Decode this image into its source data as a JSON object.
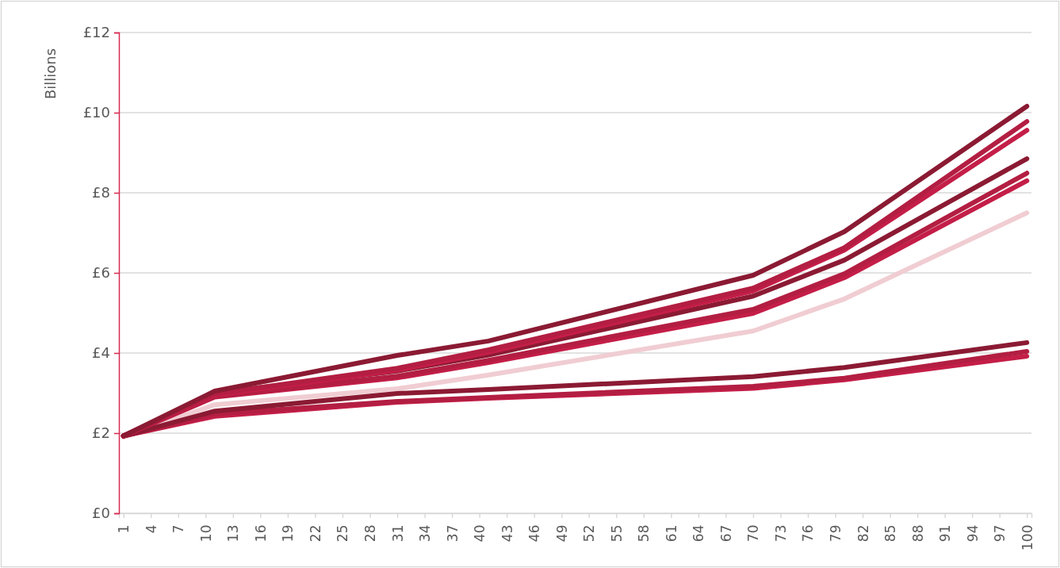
{
  "chart_data": {
    "type": "line",
    "ylabel": "Billions",
    "x": [
      1,
      11,
      31,
      41,
      70,
      80,
      100
    ],
    "xlim": [
      0.5,
      100.5
    ],
    "xticks": [
      1,
      4,
      7,
      10,
      13,
      16,
      19,
      22,
      25,
      28,
      31,
      34,
      37,
      40,
      43,
      46,
      49,
      52,
      55,
      58,
      61,
      64,
      67,
      70,
      73,
      76,
      79,
      82,
      85,
      88,
      91,
      94,
      97,
      100
    ],
    "ylim": [
      0,
      12
    ],
    "yticks": [
      {
        "value": 0,
        "label": "£0"
      },
      {
        "value": 2,
        "label": "£2"
      },
      {
        "value": 4,
        "label": "£4"
      },
      {
        "value": 6,
        "label": "£6"
      },
      {
        "value": 8,
        "label": "£8"
      },
      {
        "value": 10,
        "label": "£10"
      },
      {
        "value": 12,
        "label": "£12"
      }
    ],
    "grid": "y",
    "marker": "none",
    "line_style": "solid",
    "series": [
      {
        "color": "#f0cdd2",
        "values": [
          1.9,
          2.71,
          3.11,
          3.45,
          4.55,
          5.35,
          7.5
        ]
      },
      {
        "color": "#c41e48",
        "values": [
          1.93,
          2.42,
          2.77,
          2.87,
          3.12,
          3.33,
          3.92
        ]
      },
      {
        "color": "#b31e42",
        "values": [
          1.93,
          2.48,
          2.79,
          2.89,
          3.17,
          3.37,
          4.04
        ]
      },
      {
        "color": "#8b1a33",
        "values": [
          1.93,
          2.55,
          2.99,
          3.09,
          3.41,
          3.64,
          4.26
        ]
      },
      {
        "color": "#c41e48",
        "values": [
          1.93,
          2.9,
          3.38,
          3.76,
          4.99,
          5.88,
          8.3
        ]
      },
      {
        "color": "#b31e42",
        "values": [
          1.93,
          2.92,
          3.42,
          3.82,
          5.09,
          5.98,
          8.49
        ]
      },
      {
        "color": "#8b1a33",
        "values": [
          1.93,
          3.0,
          3.55,
          3.95,
          5.42,
          6.32,
          8.85
        ]
      },
      {
        "color": "#c41e48",
        "values": [
          1.93,
          2.95,
          3.57,
          4.02,
          5.55,
          6.57,
          9.56
        ]
      },
      {
        "color": "#b31e42",
        "values": [
          1.93,
          2.98,
          3.62,
          4.08,
          5.62,
          6.63,
          9.78
        ]
      },
      {
        "color": "#8b1a33",
        "values": [
          1.93,
          3.05,
          3.94,
          4.3,
          5.94,
          7.03,
          10.16
        ]
      }
    ]
  }
}
